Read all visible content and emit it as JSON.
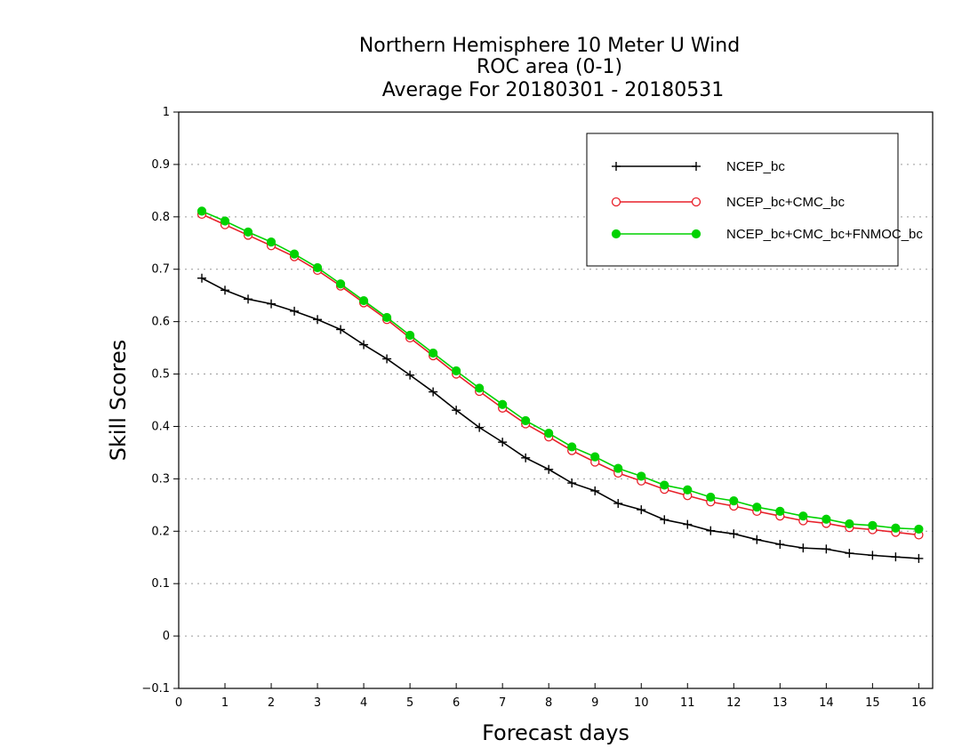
{
  "chart_data": {
    "type": "line",
    "title_lines": [
      "Northern Hemisphere 10 Meter U Wind",
      "ROC area (0-1)",
      "Average For 20180301 - 20180531"
    ],
    "xlabel": "Forecast days",
    "ylabel": "Skill Scores",
    "xlim": [
      0,
      16.3
    ],
    "ylim": [
      -0.1,
      1
    ],
    "xticks": [
      0,
      1,
      2,
      3,
      4,
      5,
      6,
      7,
      8,
      9,
      10,
      11,
      12,
      13,
      14,
      15,
      16
    ],
    "xtick_labels": [
      "0",
      "1",
      "2",
      "3",
      "4",
      "5",
      "6",
      "7",
      "8",
      "9",
      "10",
      "11",
      "12",
      "13",
      "14",
      "15",
      "16"
    ],
    "yticks": [
      -0.1,
      0,
      0.1,
      0.2,
      0.3,
      0.4,
      0.5,
      0.6,
      0.7,
      0.8,
      0.9,
      1
    ],
    "ytick_labels": [
      "−0.1",
      "0",
      "0.1",
      "0.2",
      "0.3",
      "0.4",
      "0.5",
      "0.6",
      "0.7",
      "0.8",
      "0.9",
      "1"
    ],
    "grid": "horizontal dotted",
    "legend_position": "top-right",
    "x": [
      0.5,
      1,
      1.5,
      2,
      2.5,
      3,
      3.5,
      4,
      4.5,
      5,
      5.5,
      6,
      6.5,
      7,
      7.5,
      8,
      8.5,
      9,
      9.5,
      10,
      10.5,
      11,
      11.5,
      12,
      12.5,
      13,
      13.5,
      14,
      14.5,
      15,
      15.5,
      16
    ],
    "series": [
      {
        "name": "NCEP_bc",
        "color": "#000000",
        "marker": "plus",
        "values": [
          0.683,
          0.66,
          0.643,
          0.634,
          0.62,
          0.604,
          0.585,
          0.556,
          0.529,
          0.498,
          0.466,
          0.431,
          0.398,
          0.37,
          0.34,
          0.318,
          0.292,
          0.277,
          0.253,
          0.241,
          0.222,
          0.213,
          0.201,
          0.195,
          0.184,
          0.175,
          0.168,
          0.166,
          0.158,
          0.154,
          0.151,
          0.148
        ]
      },
      {
        "name": "NCEP_bc+CMC_bc",
        "color": "#e8202a",
        "marker": "open-circle",
        "values": [
          0.805,
          0.785,
          0.765,
          0.745,
          0.724,
          0.698,
          0.668,
          0.636,
          0.604,
          0.569,
          0.535,
          0.5,
          0.467,
          0.435,
          0.405,
          0.38,
          0.354,
          0.332,
          0.311,
          0.296,
          0.28,
          0.268,
          0.256,
          0.248,
          0.238,
          0.229,
          0.22,
          0.215,
          0.207,
          0.203,
          0.198,
          0.193
        ]
      },
      {
        "name": "NCEP_bc+CMC_bc+FNMOC_bc",
        "color": "#00d200",
        "marker": "filled-circle",
        "values": [
          0.811,
          0.792,
          0.771,
          0.752,
          0.729,
          0.703,
          0.672,
          0.64,
          0.608,
          0.574,
          0.54,
          0.506,
          0.473,
          0.442,
          0.411,
          0.387,
          0.361,
          0.342,
          0.32,
          0.305,
          0.288,
          0.279,
          0.265,
          0.258,
          0.246,
          0.238,
          0.229,
          0.223,
          0.214,
          0.211,
          0.206,
          0.204
        ]
      }
    ]
  }
}
